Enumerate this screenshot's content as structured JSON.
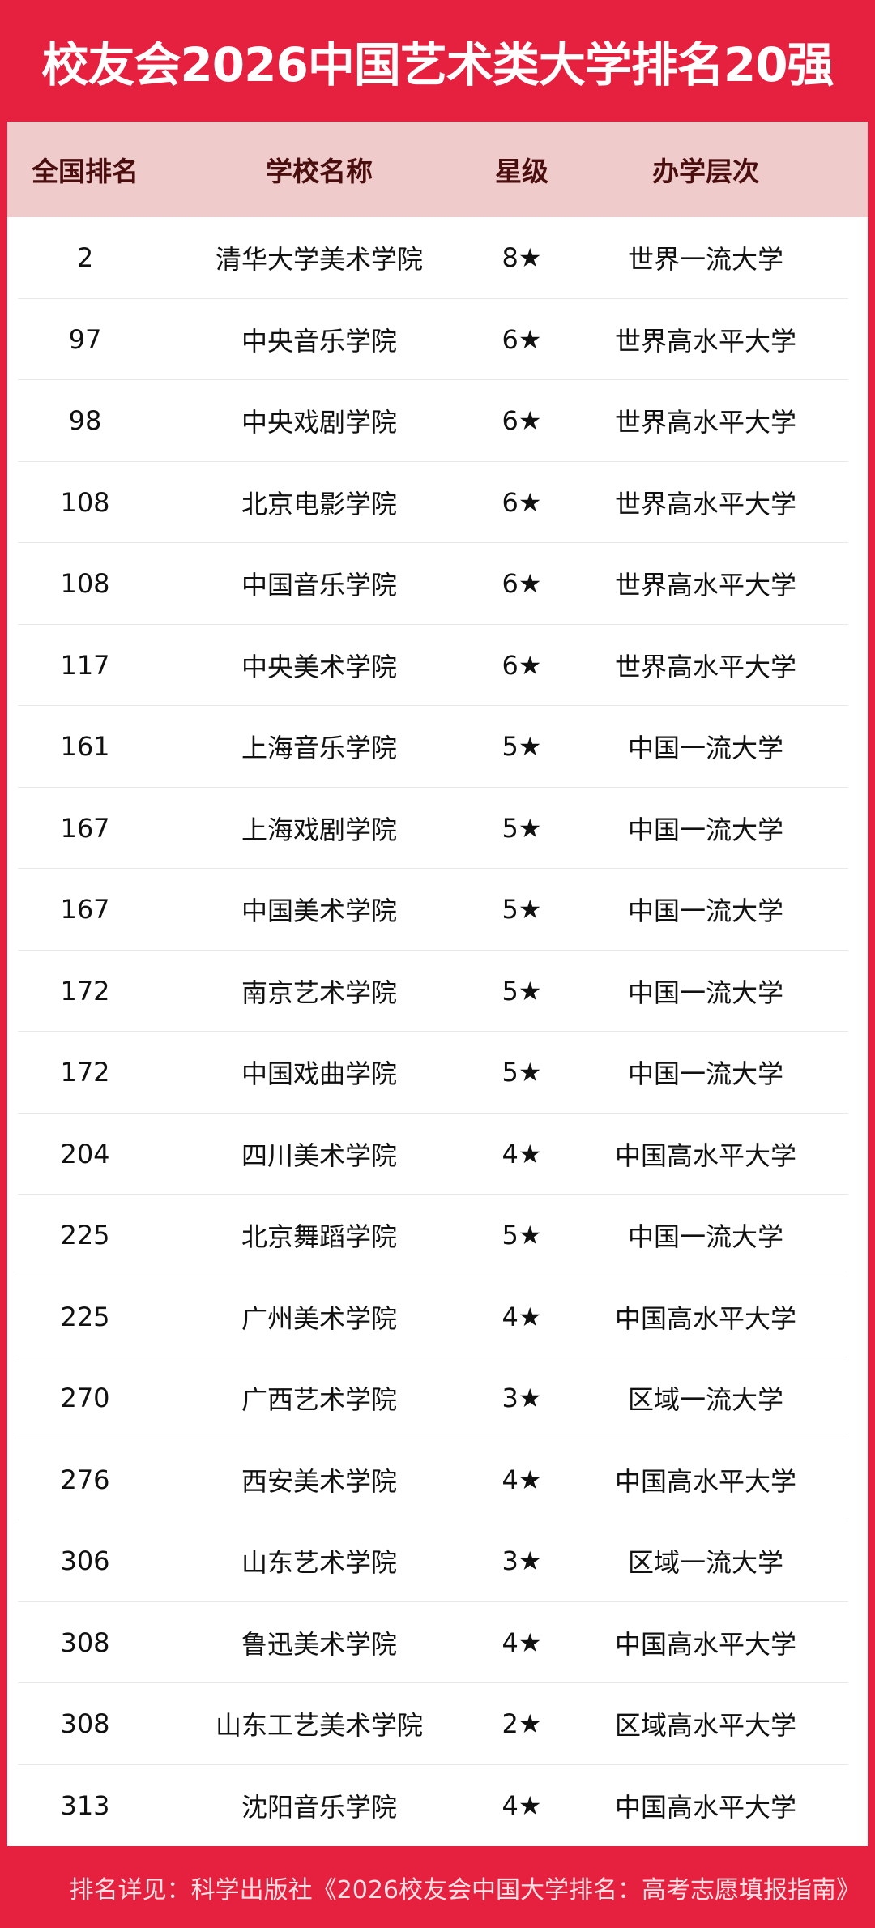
{
  "title": "校友会2026中国艺术类大学排名20强",
  "headers": [
    "全国排名",
    "学校名称",
    "星级",
    "办学层次"
  ],
  "rows": [
    {
      "rank": "2",
      "name": "清华大学美术学院",
      "stars": "8★",
      "level": "世界一流大学"
    },
    {
      "rank": "97",
      "name": "中央音乐学院",
      "stars": "6★",
      "level": "世界高水平大学"
    },
    {
      "rank": "98",
      "name": "中央戏剧学院",
      "stars": "6★",
      "level": "世界高水平大学"
    },
    {
      "rank": "108",
      "name": "北京电影学院",
      "stars": "6★",
      "level": "世界高水平大学"
    },
    {
      "rank": "108",
      "name": "中国音乐学院",
      "stars": "6★",
      "level": "世界高水平大学"
    },
    {
      "rank": "117",
      "name": "中央美术学院",
      "stars": "6★",
      "level": "世界高水平大学"
    },
    {
      "rank": "161",
      "name": "上海音乐学院",
      "stars": "5★",
      "level": "中国一流大学"
    },
    {
      "rank": "167",
      "name": "上海戏剧学院",
      "stars": "5★",
      "level": "中国一流大学"
    },
    {
      "rank": "167",
      "name": "中国美术学院",
      "stars": "5★",
      "level": "中国一流大学"
    },
    {
      "rank": "172",
      "name": "南京艺术学院",
      "stars": "5★",
      "level": "中国一流大学"
    },
    {
      "rank": "172",
      "name": "中国戏曲学院",
      "stars": "5★",
      "level": "中国一流大学"
    },
    {
      "rank": "204",
      "name": "四川美术学院",
      "stars": "4★",
      "level": "中国高水平大学"
    },
    {
      "rank": "225",
      "name": "北京舞蹈学院",
      "stars": "5★",
      "level": "中国一流大学"
    },
    {
      "rank": "225",
      "name": "广州美术学院",
      "stars": "4★",
      "level": "中国高水平大学"
    },
    {
      "rank": "270",
      "name": "广西艺术学院",
      "stars": "3★",
      "level": "区域一流大学"
    },
    {
      "rank": "276",
      "name": "西安美术学院",
      "stars": "4★",
      "level": "中国高水平大学"
    },
    {
      "rank": "306",
      "name": "山东艺术学院",
      "stars": "3★",
      "level": "区域一流大学"
    },
    {
      "rank": "308",
      "name": "鲁迅美术学院",
      "stars": "4★",
      "level": "中国高水平大学"
    },
    {
      "rank": "308",
      "name": "山东工艺美术学院",
      "stars": "2★",
      "level": "区域高水平大学"
    },
    {
      "rank": "313",
      "name": "沈阳音乐学院",
      "stars": "4★",
      "level": "中国高水平大学"
    }
  ],
  "footer": "排名详见：科学出版社《2026校友会中国大学排名：高考志愿填报指南》",
  "colors": {
    "accent": "#e5213f",
    "header_bg": "#efcbcb",
    "header_text": "#4a0e0e"
  }
}
